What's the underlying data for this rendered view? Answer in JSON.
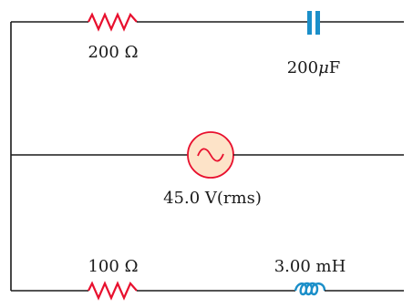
{
  "top_branch": {
    "resistor_label": "200 Ω",
    "capacitor_value": "200",
    "capacitor_unit_prefix": "μ",
    "capacitor_unit": "F"
  },
  "middle_branch": {
    "source_label": "45.0 V(rms)"
  },
  "bottom_branch": {
    "resistor_label": "100 Ω",
    "inductor_label": "3.00 mH"
  },
  "colors": {
    "wire": "#1a1a1a",
    "resistor": "#e8102e",
    "capacitor": "#1b8fc9",
    "inductor": "#1b8fc9",
    "source_fill": "#fde3c8",
    "source_stroke": "#e8102e"
  }
}
